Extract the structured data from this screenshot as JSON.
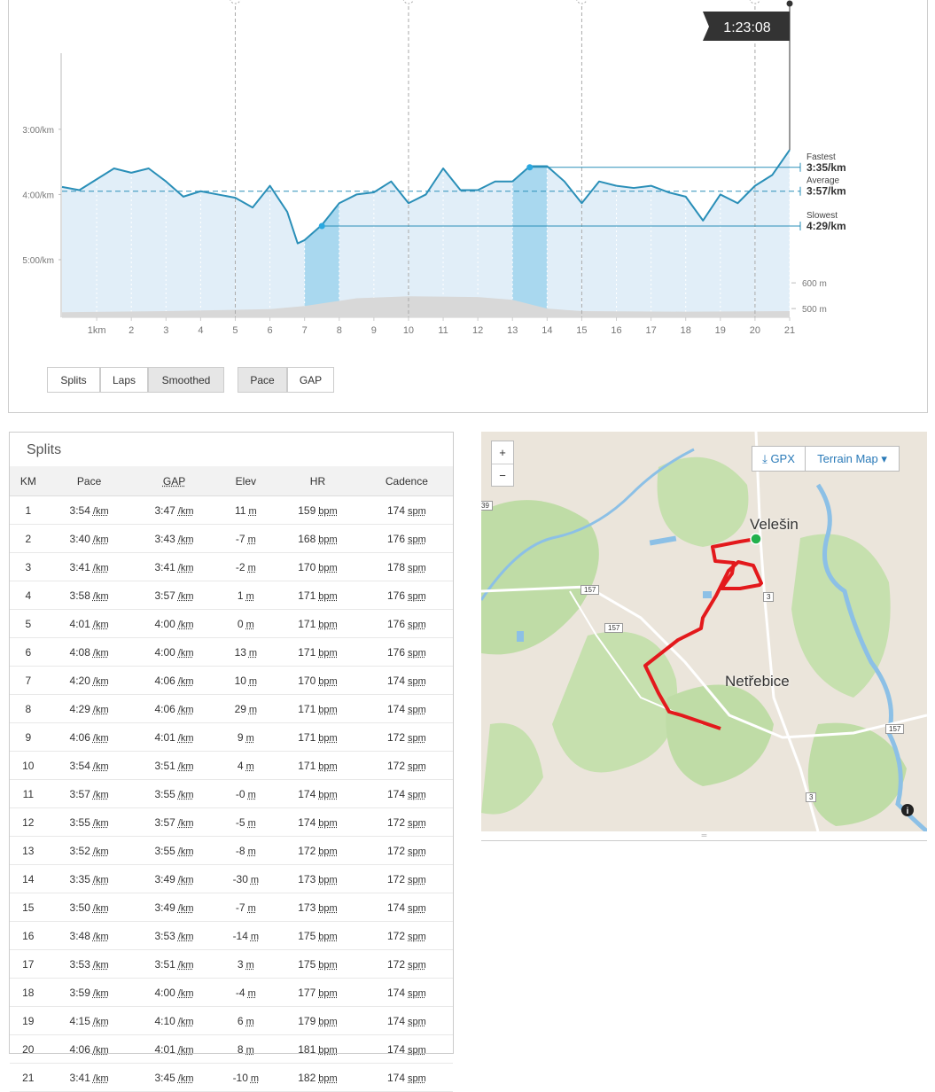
{
  "pace_chart": {
    "type": "line",
    "x": [
      0,
      0.5,
      1,
      1.5,
      2,
      2.5,
      3,
      3.5,
      4,
      4.5,
      5,
      5.5,
      6,
      6.5,
      6.8,
      7,
      7.5,
      8,
      8.5,
      9,
      9.5,
      10,
      10.5,
      11,
      11.5,
      12,
      12.5,
      13,
      13.5,
      14,
      14.5,
      15,
      15.5,
      16,
      16.5,
      17,
      17.5,
      18,
      18.5,
      19,
      19.5,
      20,
      20.5,
      21
    ],
    "values": [
      233,
      236,
      226,
      216,
      220,
      216,
      228,
      242,
      237,
      240,
      243,
      252,
      232,
      256,
      285,
      282,
      268,
      248,
      240,
      238,
      228,
      248,
      240,
      216,
      236,
      236,
      228,
      228,
      214,
      214,
      228,
      248,
      228,
      232,
      234,
      232,
      238,
      242,
      264,
      240,
      248,
      232,
      222,
      199
    ],
    "elevation_x": [
      0,
      3,
      6,
      7,
      8.5,
      10,
      12,
      13,
      14,
      15,
      18,
      21
    ],
    "elevation": [
      486,
      490,
      498,
      510,
      540,
      548,
      545,
      534,
      500,
      490,
      488,
      490
    ],
    "xlim": [
      0,
      21
    ],
    "xticks": [
      {
        "value": 1,
        "label": "1km"
      },
      2,
      3,
      4,
      5,
      6,
      7,
      8,
      9,
      10,
      11,
      12,
      13,
      14,
      15,
      16,
      17,
      18,
      19,
      20,
      21
    ],
    "ylim": [
      110,
      353
    ],
    "y_inverted": true,
    "yticks": [
      {
        "value": 180,
        "label": "3:00/km"
      },
      {
        "value": 240,
        "label": "4:00/km"
      },
      {
        "value": 300,
        "label": "5:00/km"
      }
    ],
    "y2lim": [
      466,
      1493
    ],
    "y2ticks": [
      {
        "value": 500,
        "label": "500 m"
      },
      {
        "value": 600,
        "label": "600 m"
      }
    ],
    "highlights": [
      [
        7,
        8
      ],
      [
        13,
        14
      ]
    ],
    "lap_lines": [
      5,
      10,
      15,
      20
    ],
    "reference_lines": [
      {
        "name": "Fastest",
        "value": 215,
        "value_label": "3:35/km",
        "x": 13.5
      },
      {
        "name": "Average",
        "value": 237,
        "value_label": "3:57/km"
      },
      {
        "name": "Slowest",
        "value": 269,
        "value_label": "4:29/km",
        "x": 7.5
      }
    ],
    "cursor": {
      "x": 21,
      "label": "1:23:08"
    },
    "color": "#2a8fb8"
  },
  "buttons": {
    "view": [
      "Splits",
      "Laps",
      "Smoothed"
    ],
    "view_active": 2,
    "metric": [
      "Pace",
      "GAP"
    ],
    "metric_active": 0
  },
  "splits": {
    "title": "Splits",
    "headers": [
      "KM",
      "Pace",
      "GAP",
      "Elev",
      "HR",
      "Cadence"
    ],
    "units": [
      "",
      "/km",
      "/km",
      "m",
      "bpm",
      "spm"
    ],
    "rows": [
      [
        "1",
        "3:54",
        "3:47",
        "11",
        "159",
        "174"
      ],
      [
        "2",
        "3:40",
        "3:43",
        "-7",
        "168",
        "176"
      ],
      [
        "3",
        "3:41",
        "3:41",
        "-2",
        "170",
        "178"
      ],
      [
        "4",
        "3:58",
        "3:57",
        "1",
        "171",
        "176"
      ],
      [
        "5",
        "4:01",
        "4:00",
        "0",
        "171",
        "176"
      ],
      [
        "6",
        "4:08",
        "4:00",
        "13",
        "171",
        "176"
      ],
      [
        "7",
        "4:20",
        "4:06",
        "10",
        "170",
        "174"
      ],
      [
        "8",
        "4:29",
        "4:06",
        "29",
        "171",
        "174"
      ],
      [
        "9",
        "4:06",
        "4:01",
        "9",
        "171",
        "172"
      ],
      [
        "10",
        "3:54",
        "3:51",
        "4",
        "171",
        "172"
      ],
      [
        "11",
        "3:57",
        "3:55",
        "-0",
        "174",
        "174"
      ],
      [
        "12",
        "3:55",
        "3:57",
        "-5",
        "174",
        "172"
      ],
      [
        "13",
        "3:52",
        "3:55",
        "-8",
        "172",
        "172"
      ],
      [
        "14",
        "3:35",
        "3:49",
        "-30",
        "173",
        "172"
      ],
      [
        "15",
        "3:50",
        "3:49",
        "-7",
        "173",
        "174"
      ],
      [
        "16",
        "3:48",
        "3:53",
        "-14",
        "175",
        "172"
      ],
      [
        "17",
        "3:53",
        "3:51",
        "3",
        "175",
        "172"
      ],
      [
        "18",
        "3:59",
        "4:00",
        "-4",
        "177",
        "174"
      ],
      [
        "19",
        "4:15",
        "4:10",
        "6",
        "179",
        "174"
      ],
      [
        "20",
        "4:06",
        "4:01",
        "8",
        "181",
        "174"
      ],
      [
        "21",
        "3:41",
        "3:45",
        "-10",
        "182",
        "174"
      ]
    ]
  },
  "map": {
    "zoom_in": "+",
    "zoom_out": "−",
    "gpx": "GPX",
    "layer": "Terrain Map",
    "places": [
      "Velešin",
      "Netřebice"
    ],
    "roads": [
      "39",
      "157",
      "157",
      "3",
      "3",
      "157"
    ]
  }
}
